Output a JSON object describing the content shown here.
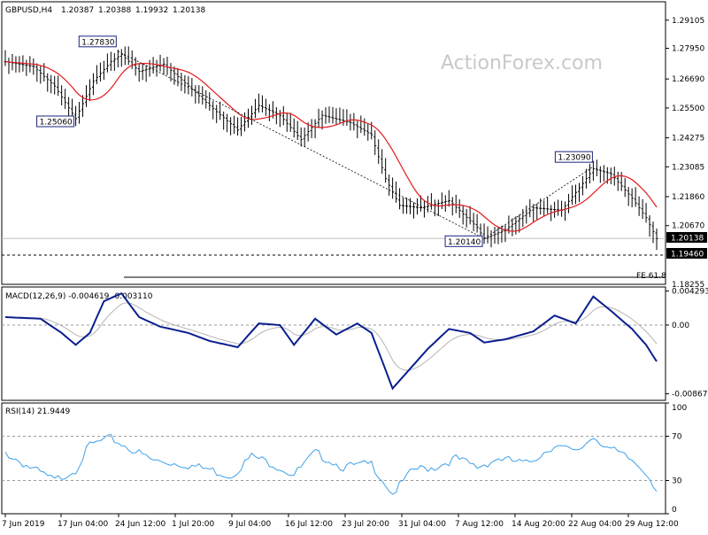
{
  "chart_data": [
    {
      "type": "ohlc",
      "header": {
        "symbol": "GBPUSD,H4",
        "values": [
          "1.20387",
          "1.20388",
          "1.19932",
          "1.20138"
        ]
      },
      "watermark": "ActionForex.com",
      "ylim": [
        1.1826,
        1.2986
      ],
      "yticks": [
        "1.29105",
        "1.27950",
        "1.26690",
        "1.25500",
        "1.24275",
        "1.23085",
        "1.21860",
        "1.20670"
      ],
      "last_price": "1.20138",
      "support_level": {
        "label": "1.19460",
        "value": 1.1946
      },
      "fe_line": {
        "label": "FE 61.8",
        "value": 1.1855
      },
      "ylim_bottom_label": "1.18255",
      "annotations": [
        {
          "label": "1.27830",
          "bar": 32,
          "value": 1.2783
        },
        {
          "label": "1.25060",
          "bar": 20,
          "value": 1.2506
        },
        {
          "label": "1.20140",
          "bar": 136,
          "value": 1.2014
        },
        {
          "label": "1.23090",
          "bar": 167,
          "value": 1.2309
        }
      ],
      "trend_lines": [
        {
          "from": {
            "bar": 32,
            "value": 1.2783
          },
          "to": {
            "bar": 136,
            "value": 1.2014
          }
        },
        {
          "from": {
            "bar": 136,
            "value": 1.2014
          },
          "to": {
            "bar": 167,
            "value": 1.2309
          }
        }
      ],
      "ma_color": "#e31a1c",
      "bar_color": "#000000",
      "close_anchors": [
        [
          0,
          1.274
        ],
        [
          8,
          1.272
        ],
        [
          14,
          1.264
        ],
        [
          20,
          1.2506
        ],
        [
          25,
          1.266
        ],
        [
          30,
          1.274
        ],
        [
          33,
          1.277
        ],
        [
          38,
          1.27
        ],
        [
          45,
          1.273
        ],
        [
          52,
          1.264
        ],
        [
          58,
          1.256
        ],
        [
          66,
          1.246
        ],
        [
          72,
          1.256
        ],
        [
          78,
          1.252
        ],
        [
          84,
          1.242
        ],
        [
          90,
          1.252
        ],
        [
          98,
          1.249
        ],
        [
          104,
          1.244
        ],
        [
          108,
          1.226
        ],
        [
          112,
          1.215
        ],
        [
          118,
          1.214
        ],
        [
          126,
          1.217
        ],
        [
          134,
          1.206
        ],
        [
          136,
          1.2014
        ],
        [
          142,
          1.205
        ],
        [
          150,
          1.214
        ],
        [
          158,
          1.213
        ],
        [
          164,
          1.224
        ],
        [
          167,
          1.23
        ],
        [
          172,
          1.228
        ],
        [
          178,
          1.218
        ],
        [
          182,
          1.21
        ],
        [
          185,
          1.2014
        ]
      ]
    },
    {
      "type": "line",
      "title": "MACD(12,26,9) -0.004619 -0.003110",
      "ylim": [
        -0.0095,
        0.0048
      ],
      "yticks": [
        "0.004293",
        "0.00",
        "-0.00867"
      ],
      "series": [
        {
          "color": "#0a1f8f"
        },
        {
          "color": "#b5b5b5"
        }
      ],
      "macd_anchors": [
        [
          0,
          0.001
        ],
        [
          10,
          0.0008
        ],
        [
          16,
          -0.001
        ],
        [
          20,
          -0.0025
        ],
        [
          24,
          -0.001
        ],
        [
          28,
          0.003
        ],
        [
          33,
          0.004
        ],
        [
          38,
          0.001
        ],
        [
          44,
          -0.0002
        ],
        [
          52,
          -0.001
        ],
        [
          58,
          -0.002
        ],
        [
          66,
          -0.0028
        ],
        [
          72,
          0.0002
        ],
        [
          78,
          0.0
        ],
        [
          82,
          -0.0025
        ],
        [
          88,
          0.0008
        ],
        [
          94,
          -0.0012
        ],
        [
          100,
          0.0002
        ],
        [
          104,
          -0.001
        ],
        [
          110,
          -0.008
        ],
        [
          114,
          -0.006
        ],
        [
          120,
          -0.003
        ],
        [
          126,
          -0.0005
        ],
        [
          132,
          -0.001
        ],
        [
          136,
          -0.0022
        ],
        [
          142,
          -0.0018
        ],
        [
          150,
          -0.0008
        ],
        [
          156,
          0.0012
        ],
        [
          162,
          0.0002
        ],
        [
          167,
          0.0036
        ],
        [
          172,
          0.0018
        ],
        [
          178,
          -0.0005
        ],
        [
          182,
          -0.0025
        ],
        [
          185,
          -0.0046
        ]
      ]
    },
    {
      "type": "line",
      "title": "RSI(14) 21.9449",
      "ylim": [
        0,
        100
      ],
      "yticks": [
        "100",
        "70",
        "30",
        "0"
      ],
      "levels": [
        70,
        30
      ],
      "series": [
        {
          "color": "#3ea1e8"
        }
      ],
      "rsi_anchors": [
        [
          0,
          55
        ],
        [
          8,
          40
        ],
        [
          14,
          30
        ],
        [
          20,
          40
        ],
        [
          24,
          62
        ],
        [
          30,
          68
        ],
        [
          36,
          58
        ],
        [
          42,
          48
        ],
        [
          50,
          45
        ],
        [
          58,
          40
        ],
        [
          64,
          34
        ],
        [
          70,
          52
        ],
        [
          76,
          45
        ],
        [
          82,
          35
        ],
        [
          88,
          55
        ],
        [
          96,
          42
        ],
        [
          104,
          45
        ],
        [
          110,
          18
        ],
        [
          116,
          40
        ],
        [
          122,
          42
        ],
        [
          128,
          50
        ],
        [
          134,
          42
        ],
        [
          140,
          50
        ],
        [
          148,
          45
        ],
        [
          156,
          62
        ],
        [
          162,
          55
        ],
        [
          167,
          70
        ],
        [
          172,
          58
        ],
        [
          178,
          48
        ],
        [
          182,
          38
        ],
        [
          185,
          22
        ]
      ]
    }
  ],
  "x_axis": {
    "labels": [
      "7 Jun 2019",
      "17 Jun 04:00",
      "24 Jun 12:00",
      "1 Jul 20:00",
      "9 Jul 04:00",
      "16 Jul 12:00",
      "23 Jul 20:00",
      "31 Jul 04:00",
      "7 Aug 12:00",
      "14 Aug 20:00",
      "22 Aug 04:00",
      "29 Aug 12:00"
    ]
  }
}
